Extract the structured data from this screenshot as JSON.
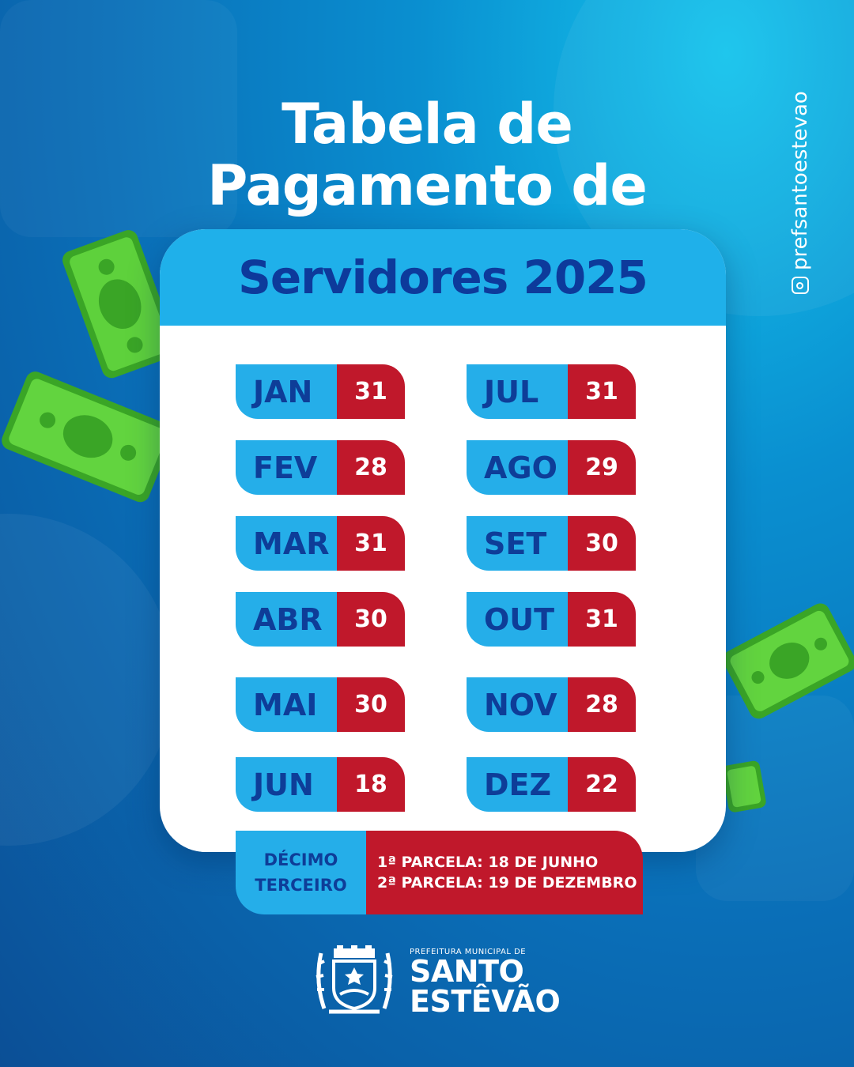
{
  "title": {
    "line1": "Tabela de",
    "line2": "Pagamento de"
  },
  "instagram_handle": "prefsantoestevao",
  "card": {
    "heading": "Servidores 2025",
    "months": [
      {
        "month": "JAN",
        "day": "31"
      },
      {
        "month": "FEV",
        "day": "28"
      },
      {
        "month": "MAR",
        "day": "31"
      },
      {
        "month": "ABR",
        "day": "30"
      },
      {
        "month": "MAI",
        "day": "30"
      },
      {
        "month": "JUN",
        "day": "18"
      },
      {
        "month": "JUL",
        "day": "31"
      },
      {
        "month": "AGO",
        "day": "29"
      },
      {
        "month": "SET",
        "day": "30"
      },
      {
        "month": "OUT",
        "day": "31"
      },
      {
        "month": "NOV",
        "day": "28"
      },
      {
        "month": "DEZ",
        "day": "22"
      }
    ]
  },
  "decimo": {
    "label_line1": "DÉCIMO",
    "label_line2": "TERCEIRO",
    "parcela1": "1ª PARCELA: 18 DE JUNHO",
    "parcela2": "2ª PARCELA: 19 DE DEZEMBRO"
  },
  "logo": {
    "small": "PREFEITURA MUNICIPAL DE",
    "line1": "SANTO",
    "line2": "ESTÊVÃO"
  },
  "colors": {
    "accent_blue": "#25aee9",
    "accent_red": "#c0182b",
    "dark_blue": "#0d3a9b",
    "money_green": "#4ec22e"
  }
}
